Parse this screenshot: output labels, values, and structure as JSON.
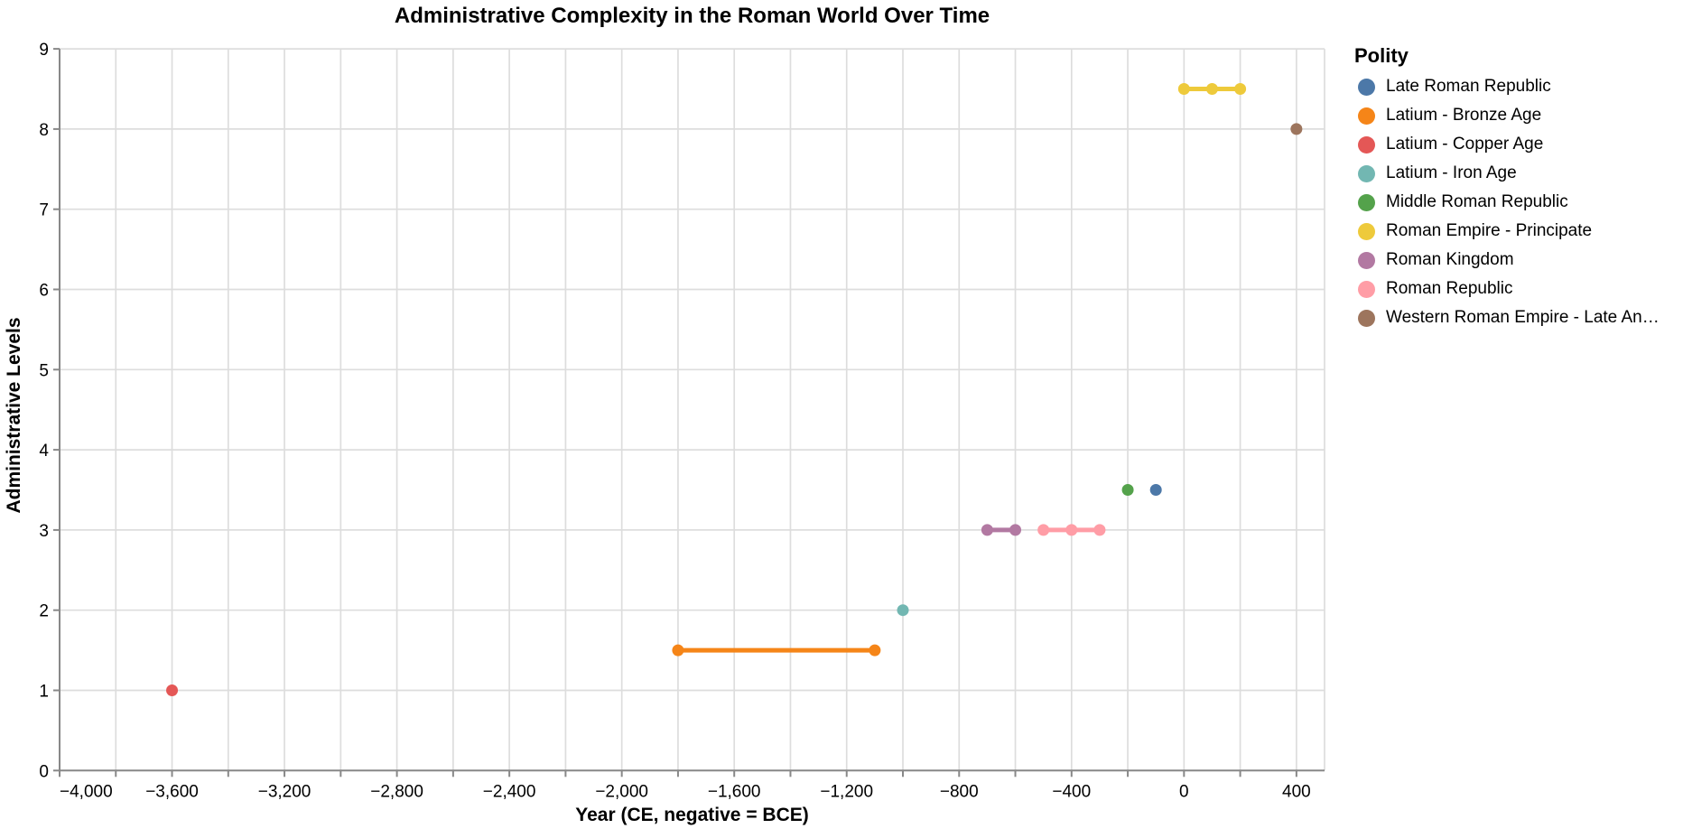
{
  "chart_data": {
    "type": "line",
    "title": "Administrative Complexity in the Roman World Over Time",
    "xlabel": "Year (CE, negative = BCE)",
    "ylabel": "Administrative Levels",
    "legend": {
      "title": "Polity",
      "position": "right"
    },
    "xlim": [
      -4000,
      500
    ],
    "ylim": [
      0,
      9
    ],
    "grid": true,
    "x_ticks": [
      {
        "value": -4000,
        "label": "−4,000"
      },
      {
        "value": -3800,
        "label": ""
      },
      {
        "value": -3600,
        "label": "−3,600"
      },
      {
        "value": -3400,
        "label": ""
      },
      {
        "value": -3200,
        "label": "−3,200"
      },
      {
        "value": -3000,
        "label": ""
      },
      {
        "value": -2800,
        "label": "−2,800"
      },
      {
        "value": -2600,
        "label": ""
      },
      {
        "value": -2400,
        "label": "−2,400"
      },
      {
        "value": -2200,
        "label": ""
      },
      {
        "value": -2000,
        "label": "−2,000"
      },
      {
        "value": -1800,
        "label": ""
      },
      {
        "value": -1600,
        "label": "−1,600"
      },
      {
        "value": -1400,
        "label": ""
      },
      {
        "value": -1200,
        "label": "−1,200"
      },
      {
        "value": -1000,
        "label": ""
      },
      {
        "value": -800,
        "label": "−800"
      },
      {
        "value": -600,
        "label": ""
      },
      {
        "value": -400,
        "label": "−400"
      },
      {
        "value": -200,
        "label": ""
      },
      {
        "value": 0,
        "label": "0"
      },
      {
        "value": 200,
        "label": ""
      },
      {
        "value": 400,
        "label": "400"
      },
      {
        "value": 500,
        "label": "",
        "tick": false
      }
    ],
    "y_ticks": [
      {
        "value": 0,
        "label": "0"
      },
      {
        "value": 1,
        "label": "1"
      },
      {
        "value": 2,
        "label": "2"
      },
      {
        "value": 3,
        "label": "3"
      },
      {
        "value": 4,
        "label": "4"
      },
      {
        "value": 5,
        "label": "5"
      },
      {
        "value": 6,
        "label": "6"
      },
      {
        "value": 7,
        "label": "7"
      },
      {
        "value": 8,
        "label": "8"
      },
      {
        "value": 9,
        "label": "9"
      }
    ],
    "series": [
      {
        "name": "Late Roman Republic",
        "color": "#4c78a8",
        "points": [
          [
            -100,
            3.5
          ]
        ]
      },
      {
        "name": "Latium - Bronze Age",
        "color": "#f58518",
        "points": [
          [
            -1800,
            1.5
          ],
          [
            -1100,
            1.5
          ]
        ]
      },
      {
        "name": "Latium - Copper Age",
        "color": "#e45756",
        "points": [
          [
            -3600,
            1
          ]
        ]
      },
      {
        "name": "Latium - Iron Age",
        "color": "#72b7b2",
        "points": [
          [
            -1000,
            2
          ]
        ]
      },
      {
        "name": "Middle Roman Republic",
        "color": "#54a24b",
        "points": [
          [
            -200,
            3.5
          ]
        ]
      },
      {
        "name": "Roman Empire - Principate",
        "color": "#eeca3b",
        "points": [
          [
            0,
            8.5
          ],
          [
            100,
            8.5
          ],
          [
            200,
            8.5
          ]
        ]
      },
      {
        "name": "Roman Kingdom",
        "color": "#b279a2",
        "points": [
          [
            -700,
            3
          ],
          [
            -600,
            3
          ]
        ]
      },
      {
        "name": "Roman Republic",
        "color": "#ff9da6",
        "points": [
          [
            -500,
            3
          ],
          [
            -400,
            3
          ],
          [
            -300,
            3
          ]
        ]
      },
      {
        "name": "Western Roman Empire - Late An…",
        "color": "#9d755d",
        "points": [
          [
            400,
            8
          ]
        ]
      }
    ]
  },
  "style_colors": {
    "grid": "#dddddd",
    "axis": "#888888",
    "label": "#000000",
    "background": "#ffffff"
  }
}
